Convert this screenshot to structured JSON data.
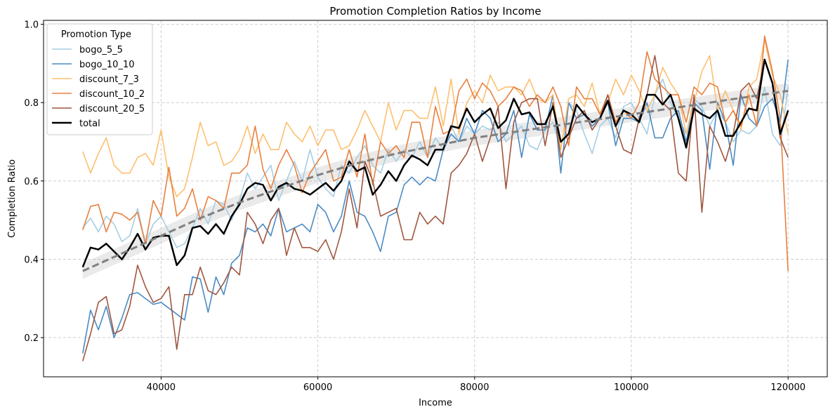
{
  "chart_data": {
    "type": "line",
    "title": "Promotion Completion Ratios by Income",
    "xlabel": "Income",
    "ylabel": "Completion Ratio",
    "xlim": [
      25000,
      125000
    ],
    "ylim": [
      0.1,
      1.01
    ],
    "xticks": [
      40000,
      60000,
      80000,
      100000,
      120000
    ],
    "yticks": [
      0.2,
      0.4,
      0.6,
      0.8,
      1.0
    ],
    "ytick_labels": [
      "0.2",
      "0.4",
      "0.6",
      "0.8",
      "1.0"
    ],
    "grid": true,
    "legend": {
      "title": "Promotion Type",
      "placement": "top-left"
    },
    "x": [
      30000,
      31000,
      32000,
      33000,
      34000,
      35000,
      36000,
      37000,
      38000,
      39000,
      40000,
      41000,
      42000,
      43000,
      44000,
      45000,
      46000,
      47000,
      48000,
      49000,
      50000,
      51000,
      52000,
      53000,
      54000,
      55000,
      56000,
      57000,
      58000,
      59000,
      60000,
      61000,
      62000,
      63000,
      64000,
      65000,
      66000,
      67000,
      68000,
      69000,
      70000,
      71000,
      72000,
      73000,
      74000,
      75000,
      76000,
      77000,
      78000,
      79000,
      80000,
      81000,
      82000,
      83000,
      84000,
      85000,
      86000,
      87000,
      88000,
      89000,
      90000,
      91000,
      92000,
      93000,
      94000,
      95000,
      96000,
      97000,
      98000,
      99000,
      100000,
      101000,
      102000,
      103000,
      104000,
      105000,
      106000,
      107000,
      108000,
      109000,
      110000,
      111000,
      112000,
      113000,
      114000,
      115000,
      116000,
      117000,
      118000,
      119000,
      120000
    ],
    "series": [
      {
        "name": "bogo_5_5",
        "color": "#a6cee3",
        "width": 1.6,
        "values": [
          0.48,
          0.505,
          0.47,
          0.51,
          0.49,
          0.445,
          0.46,
          0.53,
          0.44,
          0.49,
          0.51,
          0.47,
          0.43,
          0.44,
          0.48,
          0.53,
          0.49,
          0.55,
          0.54,
          0.5,
          0.55,
          0.62,
          0.58,
          0.61,
          0.64,
          0.55,
          0.6,
          0.65,
          0.6,
          0.68,
          0.61,
          0.58,
          0.56,
          0.64,
          0.62,
          0.66,
          0.69,
          0.64,
          0.62,
          0.68,
          0.65,
          0.68,
          0.66,
          0.7,
          0.66,
          0.71,
          0.68,
          0.74,
          0.7,
          0.74,
          0.72,
          0.74,
          0.73,
          0.75,
          0.7,
          0.72,
          0.74,
          0.69,
          0.68,
          0.73,
          0.75,
          0.68,
          0.8,
          0.78,
          0.72,
          0.67,
          0.74,
          0.76,
          0.71,
          0.79,
          0.8,
          0.76,
          0.72,
          0.82,
          0.86,
          0.8,
          0.76,
          0.72,
          0.81,
          0.79,
          0.74,
          0.78,
          0.75,
          0.7,
          0.73,
          0.72,
          0.74,
          0.84,
          0.72,
          0.69,
          0.84
        ]
      },
      {
        "name": "bogo_10_10",
        "color": "#4a8bc4",
        "width": 1.6,
        "values": [
          0.16,
          0.27,
          0.22,
          0.28,
          0.2,
          0.25,
          0.31,
          0.315,
          0.3,
          0.285,
          0.29,
          0.275,
          0.26,
          0.245,
          0.355,
          0.35,
          0.265,
          0.355,
          0.31,
          0.39,
          0.41,
          0.48,
          0.47,
          0.49,
          0.46,
          0.53,
          0.47,
          0.48,
          0.49,
          0.47,
          0.54,
          0.52,
          0.47,
          0.51,
          0.6,
          0.52,
          0.51,
          0.47,
          0.42,
          0.51,
          0.52,
          0.59,
          0.61,
          0.59,
          0.61,
          0.6,
          0.68,
          0.72,
          0.7,
          0.76,
          0.72,
          0.78,
          0.76,
          0.7,
          0.72,
          0.78,
          0.66,
          0.77,
          0.73,
          0.73,
          0.82,
          0.62,
          0.8,
          0.76,
          0.77,
          0.74,
          0.76,
          0.8,
          0.69,
          0.76,
          0.76,
          0.75,
          0.8,
          0.71,
          0.71,
          0.76,
          0.78,
          0.7,
          0.8,
          0.78,
          0.63,
          0.8,
          0.75,
          0.64,
          0.82,
          0.76,
          0.74,
          0.79,
          0.81,
          0.75,
          0.91
        ]
      },
      {
        "name": "discount_7_3",
        "color": "#fdbf6f",
        "width": 1.6,
        "values": [
          0.675,
          0.62,
          0.67,
          0.71,
          0.64,
          0.62,
          0.62,
          0.66,
          0.67,
          0.64,
          0.73,
          0.61,
          0.56,
          0.58,
          0.66,
          0.75,
          0.69,
          0.7,
          0.64,
          0.65,
          0.68,
          0.74,
          0.67,
          0.72,
          0.68,
          0.68,
          0.75,
          0.72,
          0.7,
          0.74,
          0.69,
          0.73,
          0.73,
          0.68,
          0.69,
          0.73,
          0.78,
          0.74,
          0.7,
          0.8,
          0.73,
          0.78,
          0.78,
          0.76,
          0.76,
          0.84,
          0.74,
          0.86,
          0.72,
          0.8,
          0.83,
          0.8,
          0.87,
          0.83,
          0.84,
          0.84,
          0.82,
          0.86,
          0.81,
          0.8,
          0.82,
          0.68,
          0.81,
          0.82,
          0.79,
          0.85,
          0.77,
          0.8,
          0.86,
          0.82,
          0.87,
          0.83,
          0.78,
          0.82,
          0.89,
          0.85,
          0.82,
          0.72,
          0.8,
          0.88,
          0.92,
          0.78,
          0.83,
          0.78,
          0.73,
          0.84,
          0.86,
          0.96,
          0.87,
          0.82,
          0.72
        ]
      },
      {
        "name": "discount_10_2",
        "color": "#e8803e",
        "width": 1.6,
        "values": [
          0.475,
          0.535,
          0.54,
          0.47,
          0.52,
          0.515,
          0.5,
          0.52,
          0.44,
          0.55,
          0.51,
          0.635,
          0.51,
          0.53,
          0.58,
          0.5,
          0.56,
          0.55,
          0.53,
          0.62,
          0.62,
          0.64,
          0.74,
          0.63,
          0.58,
          0.64,
          0.68,
          0.64,
          0.57,
          0.62,
          0.65,
          0.68,
          0.6,
          0.61,
          0.68,
          0.61,
          0.72,
          0.59,
          0.7,
          0.67,
          0.69,
          0.66,
          0.75,
          0.75,
          0.66,
          0.79,
          0.72,
          0.73,
          0.83,
          0.86,
          0.81,
          0.85,
          0.83,
          0.79,
          0.81,
          0.84,
          0.83,
          0.79,
          0.82,
          0.8,
          0.84,
          0.79,
          0.69,
          0.84,
          0.81,
          0.81,
          0.77,
          0.82,
          0.75,
          0.78,
          0.76,
          0.8,
          0.93,
          0.86,
          0.84,
          0.82,
          0.82,
          0.75,
          0.84,
          0.82,
          0.85,
          0.84,
          0.75,
          0.78,
          0.74,
          0.82,
          0.74,
          0.97,
          0.88,
          0.76,
          0.37
        ]
      },
      {
        "name": "discount_20_5",
        "color": "#a0573f",
        "width": 1.6,
        "values": [
          0.14,
          0.21,
          0.29,
          0.305,
          0.21,
          0.22,
          0.28,
          0.385,
          0.33,
          0.29,
          0.3,
          0.33,
          0.17,
          0.31,
          0.31,
          0.38,
          0.32,
          0.31,
          0.34,
          0.38,
          0.36,
          0.52,
          0.49,
          0.44,
          0.5,
          0.53,
          0.41,
          0.48,
          0.43,
          0.43,
          0.42,
          0.45,
          0.4,
          0.47,
          0.58,
          0.48,
          0.65,
          0.6,
          0.51,
          0.52,
          0.53,
          0.45,
          0.45,
          0.52,
          0.49,
          0.51,
          0.49,
          0.62,
          0.64,
          0.67,
          0.72,
          0.65,
          0.71,
          0.79,
          0.58,
          0.75,
          0.8,
          0.81,
          0.81,
          0.69,
          0.8,
          0.66,
          0.71,
          0.76,
          0.78,
          0.73,
          0.76,
          0.82,
          0.74,
          0.68,
          0.67,
          0.76,
          0.82,
          0.92,
          0.8,
          0.78,
          0.62,
          0.6,
          0.82,
          0.52,
          0.74,
          0.7,
          0.65,
          0.72,
          0.83,
          0.85,
          0.81,
          0.91,
          0.85,
          0.71,
          0.66
        ]
      },
      {
        "name": "total",
        "color": "#000000",
        "width": 2.5,
        "values": [
          0.38,
          0.43,
          0.425,
          0.44,
          0.42,
          0.4,
          0.43,
          0.465,
          0.425,
          0.455,
          0.46,
          0.46,
          0.385,
          0.41,
          0.48,
          0.485,
          0.465,
          0.49,
          0.465,
          0.51,
          0.54,
          0.58,
          0.595,
          0.59,
          0.55,
          0.585,
          0.595,
          0.58,
          0.575,
          0.565,
          0.58,
          0.595,
          0.575,
          0.6,
          0.65,
          0.625,
          0.635,
          0.565,
          0.59,
          0.625,
          0.6,
          0.64,
          0.665,
          0.655,
          0.64,
          0.68,
          0.68,
          0.74,
          0.735,
          0.785,
          0.75,
          0.77,
          0.785,
          0.735,
          0.755,
          0.81,
          0.77,
          0.775,
          0.745,
          0.745,
          0.79,
          0.7,
          0.72,
          0.795,
          0.77,
          0.75,
          0.76,
          0.805,
          0.74,
          0.78,
          0.77,
          0.75,
          0.82,
          0.82,
          0.795,
          0.82,
          0.76,
          0.685,
          0.785,
          0.77,
          0.76,
          0.78,
          0.715,
          0.715,
          0.75,
          0.785,
          0.78,
          0.91,
          0.85,
          0.72,
          0.78
        ]
      }
    ],
    "trend": {
      "color": "#808080",
      "x": [
        30000,
        35000,
        40000,
        45000,
        50000,
        55000,
        60000,
        65000,
        70000,
        75000,
        80000,
        85000,
        90000,
        95000,
        100000,
        105000,
        110000,
        115000,
        120000
      ],
      "y": [
        0.37,
        0.415,
        0.46,
        0.505,
        0.545,
        0.58,
        0.615,
        0.645,
        0.67,
        0.69,
        0.71,
        0.725,
        0.74,
        0.755,
        0.77,
        0.785,
        0.8,
        0.815,
        0.83
      ],
      "band_half_width": 0.02
    }
  }
}
